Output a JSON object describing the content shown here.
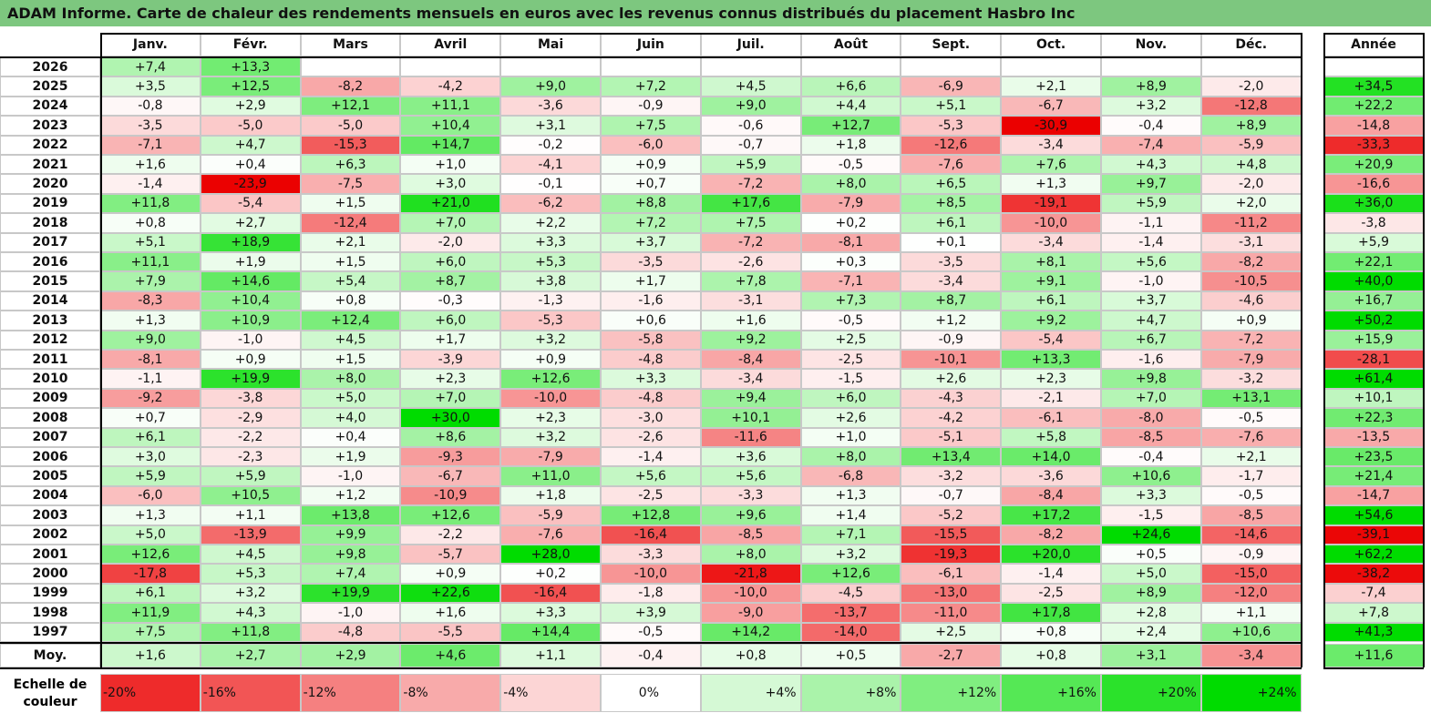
{
  "title": "ADAM Informe. Carte de chaleur des rendements mensuels en euros avec les revenus connus distribués du placement Hasbro Inc",
  "chart_data": {
    "type": "heatmap",
    "title": "ADAM Informe. Carte de chaleur des rendements mensuels en euros avec les revenus connus distribués du placement Hasbro Inc",
    "columns": [
      "Janv.",
      "Févr.",
      "Mars",
      "Avril",
      "Mai",
      "Juin",
      "Juil.",
      "Août",
      "Sept.",
      "Oct.",
      "Nov.",
      "Déc."
    ],
    "annual_header": "Année",
    "rows": [
      {
        "year": "2026",
        "values": [
          "+7,4",
          "+13,3",
          "",
          "",
          "",
          "",
          "",
          "",
          "",
          "",
          "",
          ""
        ],
        "annual": ""
      },
      {
        "year": "2025",
        "values": [
          "+3,5",
          "+12,5",
          "-8,2",
          "-4,2",
          "+9,0",
          "+7,2",
          "+4,5",
          "+6,6",
          "-6,9",
          "+2,1",
          "+8,9",
          "-2,0"
        ],
        "annual": "+34,5"
      },
      {
        "year": "2024",
        "values": [
          "-0,8",
          "+2,9",
          "+12,1",
          "+11,1",
          "-3,6",
          "-0,9",
          "+9,0",
          "+4,4",
          "+5,1",
          "-6,7",
          "+3,2",
          "-12,8"
        ],
        "annual": "+22,2"
      },
      {
        "year": "2023",
        "values": [
          "-3,5",
          "-5,0",
          "-5,0",
          "+10,4",
          "+3,1",
          "+7,5",
          "-0,6",
          "+12,7",
          "-5,3",
          "-30,9",
          "-0,4",
          "+8,9"
        ],
        "annual": "-14,8"
      },
      {
        "year": "2022",
        "values": [
          "-7,1",
          "+4,7",
          "-15,3",
          "+14,7",
          "-0,2",
          "-6,0",
          "-0,7",
          "+1,8",
          "-12,6",
          "-3,4",
          "-7,4",
          "-5,9"
        ],
        "annual": "-33,3"
      },
      {
        "year": "2021",
        "values": [
          "+1,6",
          "+0,4",
          "+6,3",
          "+1,0",
          "-4,1",
          "+0,9",
          "+5,9",
          "-0,5",
          "-7,6",
          "+7,6",
          "+4,3",
          "+4,8"
        ],
        "annual": "+20,9"
      },
      {
        "year": "2020",
        "values": [
          "-1,4",
          "-23,9",
          "-7,5",
          "+3,0",
          "-0,1",
          "+0,7",
          "-7,2",
          "+8,0",
          "+6,5",
          "+1,3",
          "+9,7",
          "-2,0"
        ],
        "annual": "-16,6"
      },
      {
        "year": "2019",
        "values": [
          "+11,8",
          "-5,4",
          "+1,5",
          "+21,0",
          "-6,2",
          "+8,8",
          "+17,6",
          "-7,9",
          "+8,5",
          "-19,1",
          "+5,9",
          "+2,0"
        ],
        "annual": "+36,0"
      },
      {
        "year": "2018",
        "values": [
          "+0,8",
          "+2,7",
          "-12,4",
          "+7,0",
          "+2,2",
          "+7,2",
          "+7,5",
          "+0,2",
          "+6,1",
          "-10,0",
          "-1,1",
          "-11,2"
        ],
        "annual": "-3,8"
      },
      {
        "year": "2017",
        "values": [
          "+5,1",
          "+18,9",
          "+2,1",
          "-2,0",
          "+3,3",
          "+3,7",
          "-7,2",
          "-8,1",
          "+0,1",
          "-3,4",
          "-1,4",
          "-3,1"
        ],
        "annual": "+5,9"
      },
      {
        "year": "2016",
        "values": [
          "+11,1",
          "+1,9",
          "+1,5",
          "+6,0",
          "+5,3",
          "-3,5",
          "-2,6",
          "+0,3",
          "-3,5",
          "+8,1",
          "+5,6",
          "-8,2"
        ],
        "annual": "+22,1"
      },
      {
        "year": "2015",
        "values": [
          "+7,9",
          "+14,6",
          "+5,4",
          "+8,7",
          "+3,8",
          "+1,7",
          "+7,8",
          "-7,1",
          "-3,4",
          "+9,1",
          "-1,0",
          "-10,5"
        ],
        "annual": "+40,0"
      },
      {
        "year": "2014",
        "values": [
          "-8,3",
          "+10,4",
          "+0,8",
          "-0,3",
          "-1,3",
          "-1,6",
          "-3,1",
          "+7,3",
          "+8,7",
          "+6,1",
          "+3,7",
          "-4,6"
        ],
        "annual": "+16,7"
      },
      {
        "year": "2013",
        "values": [
          "+1,3",
          "+10,9",
          "+12,4",
          "+6,0",
          "-5,3",
          "+0,6",
          "+1,6",
          "-0,5",
          "+1,2",
          "+9,2",
          "+4,7",
          "+0,9"
        ],
        "annual": "+50,2"
      },
      {
        "year": "2012",
        "values": [
          "+9,0",
          "-1,0",
          "+4,5",
          "+1,7",
          "+3,2",
          "-5,8",
          "+9,2",
          "+2,5",
          "-0,9",
          "-5,4",
          "+6,7",
          "-7,2"
        ],
        "annual": "+15,9"
      },
      {
        "year": "2011",
        "values": [
          "-8,1",
          "+0,9",
          "+1,5",
          "-3,9",
          "+0,9",
          "-4,8",
          "-8,4",
          "-2,5",
          "-10,1",
          "+13,3",
          "-1,6",
          "-7,9"
        ],
        "annual": "-28,1"
      },
      {
        "year": "2010",
        "values": [
          "-1,1",
          "+19,9",
          "+8,0",
          "+2,3",
          "+12,6",
          "+3,3",
          "-3,4",
          "-1,5",
          "+2,6",
          "+2,3",
          "+9,8",
          "-3,2"
        ],
        "annual": "+61,4"
      },
      {
        "year": "2009",
        "values": [
          "-9,2",
          "-3,8",
          "+5,0",
          "+7,0",
          "-10,0",
          "-4,8",
          "+9,4",
          "+6,0",
          "-4,3",
          "-2,1",
          "+7,0",
          "+13,1"
        ],
        "annual": "+10,1"
      },
      {
        "year": "2008",
        "values": [
          "+0,7",
          "-2,9",
          "+4,0",
          "+30,0",
          "+2,3",
          "-3,0",
          "+10,1",
          "+2,6",
          "-4,2",
          "-6,1",
          "-8,0",
          "-0,5"
        ],
        "annual": "+22,3"
      },
      {
        "year": "2007",
        "values": [
          "+6,1",
          "-2,2",
          "+0,4",
          "+8,6",
          "+3,2",
          "-2,6",
          "-11,6",
          "+1,0",
          "-5,1",
          "+5,8",
          "-8,5",
          "-7,6"
        ],
        "annual": "-13,5"
      },
      {
        "year": "2006",
        "values": [
          "+3,0",
          "-2,3",
          "+1,9",
          "-9,3",
          "-7,9",
          "-1,4",
          "+3,6",
          "+8,0",
          "+13,4",
          "+14,0",
          "-0,4",
          "+2,1"
        ],
        "annual": "+23,5"
      },
      {
        "year": "2005",
        "values": [
          "+5,9",
          "+5,9",
          "-1,0",
          "-6,7",
          "+11,0",
          "+5,6",
          "+5,6",
          "-6,8",
          "-3,2",
          "-3,6",
          "+10,6",
          "-1,7"
        ],
        "annual": "+21,4"
      },
      {
        "year": "2004",
        "values": [
          "-6,0",
          "+10,5",
          "+1,2",
          "-10,9",
          "+1,8",
          "-2,5",
          "-3,3",
          "+1,3",
          "-0,7",
          "-8,4",
          "+3,3",
          "-0,5"
        ],
        "annual": "-14,7"
      },
      {
        "year": "2003",
        "values": [
          "+1,3",
          "+1,1",
          "+13,8",
          "+12,6",
          "-5,9",
          "+12,8",
          "+9,6",
          "+1,4",
          "-5,2",
          "+17,2",
          "-1,5",
          "-8,5"
        ],
        "annual": "+54,6"
      },
      {
        "year": "2002",
        "values": [
          "+5,0",
          "-13,9",
          "+9,9",
          "-2,2",
          "-7,6",
          "-16,4",
          "-8,5",
          "+7,1",
          "-15,5",
          "-8,2",
          "+24,6",
          "-14,6"
        ],
        "annual": "-39,1"
      },
      {
        "year": "2001",
        "values": [
          "+12,6",
          "+4,5",
          "+9,8",
          "-5,7",
          "+28,0",
          "-3,3",
          "+8,0",
          "+3,2",
          "-19,3",
          "+20,0",
          "+0,5",
          "-0,9"
        ],
        "annual": "+62,2"
      },
      {
        "year": "2000",
        "values": [
          "-17,8",
          "+5,3",
          "+7,4",
          "+0,9",
          "+0,2",
          "-10,0",
          "-21,8",
          "+12,6",
          "-6,1",
          "-1,4",
          "+5,0",
          "-15,0"
        ],
        "annual": "-38,2"
      },
      {
        "year": "1999",
        "values": [
          "+6,1",
          "+3,2",
          "+19,9",
          "+22,6",
          "-16,4",
          "-1,8",
          "-10,0",
          "-4,5",
          "-13,0",
          "-2,5",
          "+8,9",
          "-12,0"
        ],
        "annual": "-7,4"
      },
      {
        "year": "1998",
        "values": [
          "+11,9",
          "+4,3",
          "-1,0",
          "+1,6",
          "+3,3",
          "+3,9",
          "-9,0",
          "-13,7",
          "-11,0",
          "+17,8",
          "+2,8",
          "+1,1"
        ],
        "annual": "+7,8"
      },
      {
        "year": "1997",
        "values": [
          "+7,5",
          "+11,8",
          "-4,8",
          "-5,5",
          "+14,4",
          "-0,5",
          "+14,2",
          "-14,0",
          "+2,5",
          "+0,8",
          "+2,4",
          "+10,6"
        ],
        "annual": "+41,3"
      }
    ],
    "average": {
      "label": "Moy.",
      "values": [
        "+1,6",
        "+2,7",
        "+2,9",
        "+4,6",
        "+1,1",
        "-0,4",
        "+0,8",
        "+0,5",
        "-2,7",
        "+0,8",
        "+3,1",
        "-3,4"
      ],
      "annual": "+11,6"
    },
    "legend": {
      "title": "Echelle de couleur",
      "labels": [
        "-20%",
        "-16%",
        "-12%",
        "-8%",
        "-4%",
        "0%",
        "+4%",
        "+8%",
        "+12%",
        "+16%",
        "+20%",
        "+24%"
      ],
      "values": [
        -20,
        -16,
        -12,
        -8,
        -4,
        0,
        4,
        8,
        12,
        16,
        20,
        24
      ]
    },
    "scale_months": {
      "min": -24,
      "max": 24
    },
    "scale_annual": {
      "min": -40,
      "max": 40
    }
  }
}
